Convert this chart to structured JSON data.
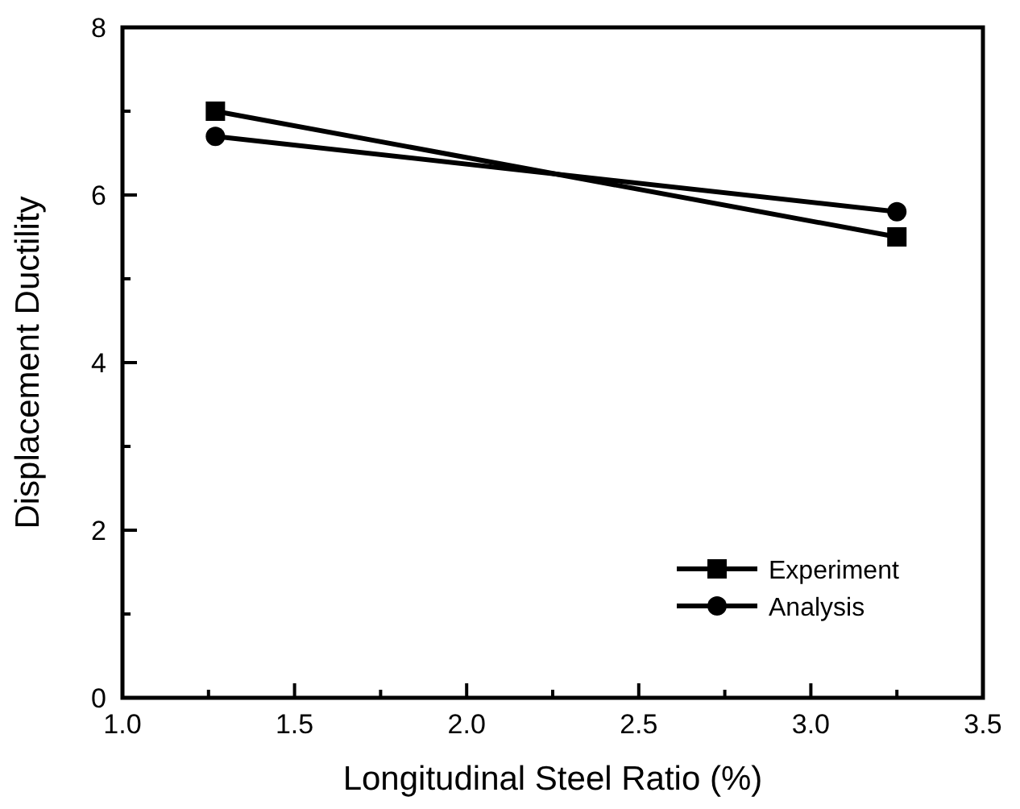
{
  "chart_data": {
    "type": "line",
    "xlabel": "Longitudinal Steel Ratio (%)",
    "ylabel": "Displacement Ductility",
    "xlim": [
      1.0,
      3.5
    ],
    "xticks": [
      {
        "value": 1.0,
        "label": "1.0"
      },
      {
        "value": 1.25,
        "label": null
      },
      {
        "value": 1.5,
        "label": "1.5"
      },
      {
        "value": 1.75,
        "label": null
      },
      {
        "value": 2.0,
        "label": "2.0"
      },
      {
        "value": 2.25,
        "label": null
      },
      {
        "value": 2.5,
        "label": "2.5"
      },
      {
        "value": 2.75,
        "label": null
      },
      {
        "value": 3.0,
        "label": "3.0"
      },
      {
        "value": 3.25,
        "label": null
      },
      {
        "value": 3.5,
        "label": "3.5"
      }
    ],
    "ylim": [
      0,
      8
    ],
    "yticks": [
      0,
      {
        "value": 1,
        "label": null
      },
      2,
      {
        "value": 3,
        "label": null
      },
      4,
      {
        "value": 5,
        "label": null
      },
      6,
      {
        "value": 7,
        "label": null
      },
      8
    ],
    "legend": "bottom right",
    "grid": false,
    "x": [
      1.27,
      3.25
    ],
    "series": [
      {
        "name": "Experiment",
        "color": "#000000",
        "marker": "square",
        "values": [
          7.0,
          5.5
        ]
      },
      {
        "name": "Analysis",
        "color": "#000000",
        "marker": "circle",
        "values": [
          6.7,
          5.8
        ]
      }
    ]
  }
}
